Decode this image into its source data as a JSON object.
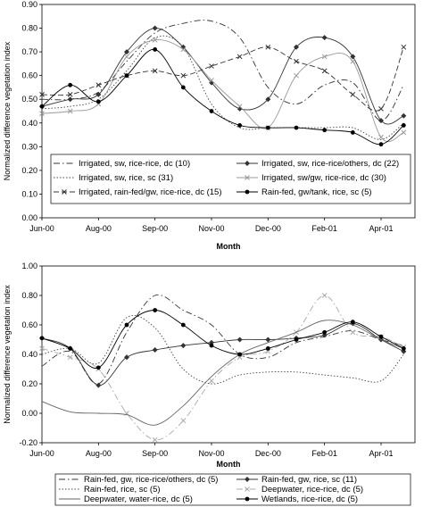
{
  "chart_data": [
    {
      "type": "line",
      "xlabel": "Month",
      "ylabel": "Normalized difference vegetation index",
      "x_ticks": [
        "Jun-00",
        "Aug-00",
        "Sep-00",
        "Nov-00",
        "Dec-00",
        "Feb-01",
        "Apr-01"
      ],
      "ylim": [
        0.0,
        0.9
      ],
      "y_ticks": [
        "0.00",
        "0.10",
        "0.20",
        "0.30",
        "0.40",
        "0.50",
        "0.60",
        "0.70",
        "0.80",
        "0.90"
      ],
      "grid": false,
      "legend_position": "bottom",
      "series": [
        {
          "name": "Irrigated, sw, rice-rice, dc (10)",
          "style": "dashdot",
          "marker": "none",
          "color": "#333333",
          "x": [
            0,
            0.5,
            1,
            1.5,
            2,
            2.5,
            3,
            3.5,
            4,
            4.5,
            5,
            5.5,
            6,
            6.4
          ],
          "y": [
            0.5,
            0.5,
            0.53,
            0.66,
            0.78,
            0.82,
            0.83,
            0.76,
            0.55,
            0.48,
            0.56,
            0.57,
            0.41,
            0.56
          ]
        },
        {
          "name": "Irrigated, sw, rice-rice/others, dc (22)",
          "style": "solid",
          "marker": "diamond",
          "color": "#333333",
          "x": [
            0,
            0.5,
            1,
            1.5,
            2,
            2.5,
            3,
            3.5,
            4,
            4.5,
            5,
            5.5,
            6,
            6.4
          ],
          "y": [
            0.47,
            0.5,
            0.52,
            0.7,
            0.8,
            0.72,
            0.57,
            0.46,
            0.5,
            0.72,
            0.76,
            0.68,
            0.41,
            0.43
          ]
        },
        {
          "name": "Irrigated, sw, rice, sc (31)",
          "style": "dotted",
          "marker": "none",
          "color": "#444444",
          "x": [
            0,
            0.5,
            1,
            1.5,
            2,
            2.5,
            3,
            3.5,
            4,
            4.5,
            5,
            5.5,
            6,
            6.4
          ],
          "y": [
            0.46,
            0.47,
            0.5,
            0.62,
            0.76,
            0.72,
            0.48,
            0.38,
            0.38,
            0.38,
            0.38,
            0.38,
            0.33,
            0.4
          ]
        },
        {
          "name": "Irrigated, sw/gw, rice-rice, dc (30)",
          "style": "solid",
          "marker": "x",
          "color": "#999999",
          "x": [
            0,
            0.5,
            1,
            1.5,
            2,
            2.5,
            3,
            3.5,
            4,
            4.5,
            5,
            5.5,
            6,
            6.4
          ],
          "y": [
            0.44,
            0.45,
            0.48,
            0.68,
            0.75,
            0.71,
            0.58,
            0.47,
            0.38,
            0.6,
            0.68,
            0.66,
            0.34,
            0.36
          ]
        },
        {
          "name": "Irrigated, rain-fed/gw, rice-rice, dc (15)",
          "style": "dashed",
          "marker": "x",
          "color": "#333333",
          "x": [
            0,
            0.5,
            1,
            1.5,
            2,
            2.5,
            3,
            3.5,
            4,
            4.5,
            5,
            5.5,
            6,
            6.4
          ],
          "y": [
            0.52,
            0.52,
            0.56,
            0.6,
            0.62,
            0.6,
            0.64,
            0.68,
            0.72,
            0.66,
            0.62,
            0.52,
            0.46,
            0.72
          ]
        },
        {
          "name": "Rain-fed, gw/tank, rice, sc (5)",
          "style": "solid",
          "marker": "circle",
          "color": "#000000",
          "x": [
            0,
            0.5,
            1,
            1.5,
            2,
            2.5,
            3,
            3.5,
            4,
            4.5,
            5,
            5.5,
            6,
            6.4
          ],
          "y": [
            0.47,
            0.56,
            0.49,
            0.6,
            0.71,
            0.55,
            0.45,
            0.39,
            0.38,
            0.38,
            0.37,
            0.36,
            0.31,
            0.39
          ]
        }
      ]
    },
    {
      "type": "line",
      "xlabel": "Month",
      "ylabel": "Normalized difference vegetation index",
      "x_ticks": [
        "Jun-00",
        "Aug-00",
        "Sep-00",
        "Nov-00",
        "Dec-00",
        "Feb-01",
        "Apr-01"
      ],
      "ylim": [
        -0.2,
        1.0
      ],
      "y_ticks": [
        "-0.20",
        "0.00",
        "0.20",
        "0.40",
        "0.60",
        "0.80",
        "1.00"
      ],
      "grid": false,
      "legend_position": "bottom",
      "series": [
        {
          "name": "Rain-fed, gw, rice-rice/others, dc (5)",
          "style": "dashdot",
          "marker": "none",
          "color": "#333333",
          "x": [
            0,
            0.5,
            1,
            1.5,
            2,
            2.5,
            3,
            3.5,
            4,
            4.5,
            5,
            5.5,
            6,
            6.4
          ],
          "y": [
            0.32,
            0.42,
            0.2,
            0.55,
            0.8,
            0.7,
            0.6,
            0.4,
            0.38,
            0.48,
            0.52,
            0.56,
            0.5,
            0.46
          ]
        },
        {
          "name": "Rain-fed, gw, rice, sc (11)",
          "style": "solid",
          "marker": "diamond",
          "color": "#333333",
          "x": [
            0,
            0.5,
            1,
            1.5,
            2,
            2.5,
            3,
            3.5,
            4,
            4.5,
            5,
            5.5,
            6,
            6.4
          ],
          "y": [
            0.51,
            0.44,
            0.19,
            0.38,
            0.43,
            0.46,
            0.48,
            0.5,
            0.5,
            0.51,
            0.53,
            0.61,
            0.5,
            0.42
          ]
        },
        {
          "name": "Rain-fed, rice, sc (5)",
          "style": "dotted",
          "marker": "none",
          "color": "#444444",
          "x": [
            0,
            0.5,
            1,
            1.5,
            2,
            2.5,
            3,
            3.5,
            4,
            4.5,
            5,
            5.5,
            6,
            6.4
          ],
          "y": [
            0.4,
            0.44,
            0.34,
            0.65,
            0.58,
            0.3,
            0.2,
            0.26,
            0.28,
            0.28,
            0.26,
            0.24,
            0.22,
            0.4
          ]
        },
        {
          "name": "Deepwater, rice-rice, dc (5)",
          "style": "dashdot",
          "marker": "x",
          "color": "#aaaaaa",
          "x": [
            0,
            0.5,
            1,
            1.5,
            2,
            2.5,
            3,
            3.5,
            4,
            4.5,
            5,
            5.5,
            6,
            6.4
          ],
          "y": [
            0.44,
            0.38,
            0.3,
            0.0,
            -0.18,
            -0.05,
            0.22,
            0.38,
            0.42,
            0.55,
            0.8,
            0.55,
            0.52,
            0.45
          ]
        },
        {
          "name": "Deepwater, water-rice, dc (5)",
          "style": "solid",
          "marker": "none",
          "color": "#666666",
          "x": [
            0,
            0.5,
            1,
            1.5,
            2,
            2.5,
            3,
            3.5,
            4,
            4.5,
            5,
            5.5,
            6,
            6.4
          ],
          "y": [
            0.08,
            0.01,
            0.0,
            -0.01,
            -0.08,
            0.05,
            0.25,
            0.4,
            0.48,
            0.55,
            0.63,
            0.6,
            0.5,
            0.44
          ]
        },
        {
          "name": "Wetlands, rice-rice, dc (5)",
          "style": "solid",
          "marker": "circle",
          "color": "#000000",
          "x": [
            0,
            0.5,
            1,
            1.5,
            2,
            2.5,
            3,
            3.5,
            4,
            4.5,
            5,
            5.5,
            6,
            6.4
          ],
          "y": [
            0.51,
            0.44,
            0.31,
            0.6,
            0.7,
            0.6,
            0.46,
            0.4,
            0.44,
            0.5,
            0.55,
            0.62,
            0.52,
            0.44
          ]
        }
      ]
    }
  ]
}
